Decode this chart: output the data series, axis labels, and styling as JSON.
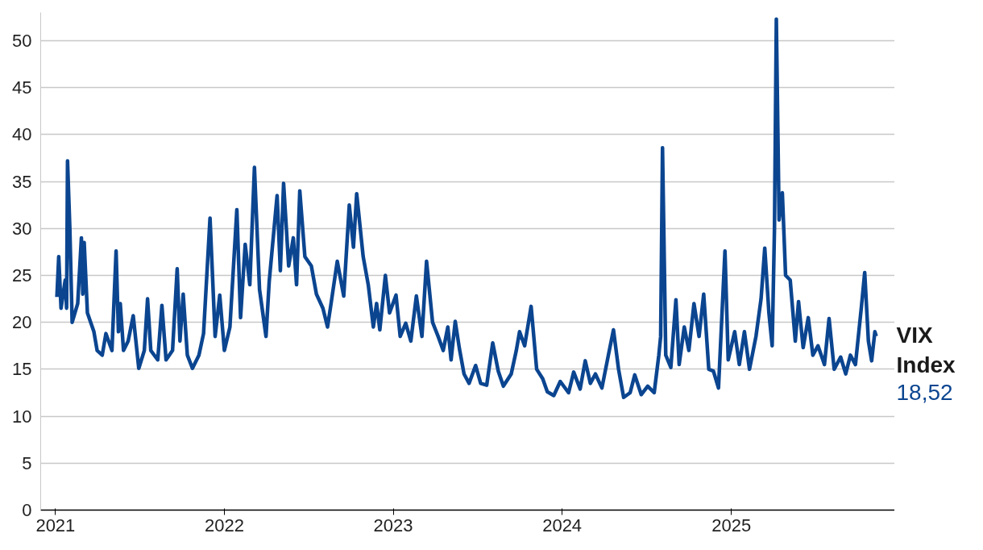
{
  "chart_data": {
    "type": "line",
    "xlim": [
      "2020-11-30",
      "2025-12-20"
    ],
    "ylim": [
      0,
      53
    ],
    "xticks": [
      {
        "value": "2021-01-01",
        "label": "2021"
      },
      {
        "value": "2022-01-01",
        "label": "2022"
      },
      {
        "value": "2023-01-01",
        "label": "2023"
      },
      {
        "value": "2024-01-01",
        "label": "2024"
      },
      {
        "value": "2025-01-01",
        "label": "2025"
      }
    ],
    "yticks": [
      0,
      5,
      10,
      15,
      20,
      25,
      30,
      35,
      40,
      45,
      50
    ],
    "grid": "y",
    "marker": "none",
    "line_style": "solid",
    "x": [
      "2021-01-04",
      "2021-01-08",
      "2021-01-13",
      "2021-01-22",
      "2021-01-25",
      "2021-01-27",
      "2021-02-01",
      "2021-02-06",
      "2021-02-18",
      "2021-02-26",
      "2021-03-01",
      "2021-03-04",
      "2021-03-11",
      "2021-03-25",
      "2021-04-01",
      "2021-04-12",
      "2021-04-20",
      "2021-05-03",
      "2021-05-12",
      "2021-05-17",
      "2021-05-21",
      "2021-05-28",
      "2021-06-07",
      "2021-06-18",
      "2021-06-30",
      "2021-07-12",
      "2021-07-19",
      "2021-07-26",
      "2021-08-10",
      "2021-08-19",
      "2021-08-28",
      "2021-09-11",
      "2021-09-21",
      "2021-09-27",
      "2021-10-04",
      "2021-10-13",
      "2021-10-24",
      "2021-11-07",
      "2021-11-17",
      "2021-12-01",
      "2021-12-12",
      "2021-12-22",
      "2022-01-01",
      "2022-01-13",
      "2022-01-28",
      "2022-02-05",
      "2022-02-15",
      "2022-02-25",
      "2022-03-07",
      "2022-03-18",
      "2022-04-01",
      "2022-04-08",
      "2022-04-25",
      "2022-05-02",
      "2022-05-09",
      "2022-05-20",
      "2022-05-30",
      "2022-06-06",
      "2022-06-13",
      "2022-06-24",
      "2022-07-08",
      "2022-07-19",
      "2022-08-02",
      "2022-08-12",
      "2022-08-19",
      "2022-09-02",
      "2022-09-16",
      "2022-09-28",
      "2022-10-07",
      "2022-10-14",
      "2022-10-28",
      "2022-11-08",
      "2022-11-19",
      "2022-11-26",
      "2022-12-03",
      "2022-12-15",
      "2022-12-24",
      "2023-01-07",
      "2023-01-16",
      "2023-01-28",
      "2023-02-08",
      "2023-02-20",
      "2023-03-04",
      "2023-03-14",
      "2023-03-27",
      "2023-04-08",
      "2023-04-19",
      "2023-04-29",
      "2023-05-06",
      "2023-05-15",
      "2023-05-24",
      "2023-06-03",
      "2023-06-14",
      "2023-06-28",
      "2023-07-09",
      "2023-07-22",
      "2023-08-04",
      "2023-08-16",
      "2023-08-27",
      "2023-09-13",
      "2023-09-24",
      "2023-10-01",
      "2023-10-12",
      "2023-10-26",
      "2023-11-07",
      "2023-11-20",
      "2023-11-30",
      "2023-12-14",
      "2023-12-28",
      "2024-01-15",
      "2024-01-26",
      "2024-02-09",
      "2024-02-20",
      "2024-03-02",
      "2024-03-13",
      "2024-03-27",
      "2024-04-10",
      "2024-04-21",
      "2024-05-02",
      "2024-05-13",
      "2024-05-27",
      "2024-06-06",
      "2024-06-20",
      "2024-07-04",
      "2024-07-18",
      "2024-07-28",
      "2024-08-01",
      "2024-08-05",
      "2024-08-12",
      "2024-08-23",
      "2024-09-03",
      "2024-09-10",
      "2024-09-21",
      "2024-10-01",
      "2024-10-12",
      "2024-10-23",
      "2024-11-02",
      "2024-11-13",
      "2024-11-23",
      "2024-12-04",
      "2024-12-18",
      "2024-12-25",
      "2025-01-08",
      "2025-01-18",
      "2025-01-29",
      "2025-02-09",
      "2025-02-23",
      "2025-03-06",
      "2025-03-14",
      "2025-03-23",
      "2025-03-30",
      "2025-04-04",
      "2025-04-08",
      "2025-04-14",
      "2025-04-21",
      "2025-04-28",
      "2025-05-08",
      "2025-05-19",
      "2025-05-26",
      "2025-06-05",
      "2025-06-16",
      "2025-06-26",
      "2025-07-07",
      "2025-07-21",
      "2025-07-31",
      "2025-08-11",
      "2025-08-25",
      "2025-09-05",
      "2025-09-15",
      "2025-09-26",
      "2025-10-09",
      "2025-10-16",
      "2025-10-24",
      "2025-10-31",
      "2025-11-07",
      "2025-11-10"
    ],
    "series": [
      {
        "name": "VIX Index",
        "color": "#0b4590",
        "values": [
          22.7,
          27,
          21.5,
          24.5,
          21.5,
          37.2,
          30,
          20,
          22,
          29,
          23,
          28.5,
          21,
          19,
          17,
          16.5,
          18.8,
          17,
          27.6,
          19,
          22,
          17,
          18,
          20.7,
          15.1,
          17,
          22.5,
          17,
          16,
          21.8,
          16,
          17,
          25.7,
          18,
          23,
          16.5,
          15.1,
          16.5,
          18.8,
          31.1,
          18.5,
          22.9,
          17,
          19.5,
          32,
          20.5,
          28.3,
          24,
          36.5,
          23.5,
          18.5,
          24.4,
          33.5,
          25.5,
          34.8,
          26,
          29,
          24,
          34,
          27,
          26,
          23,
          21.5,
          19.5,
          21.8,
          26.5,
          22.8,
          32.5,
          28,
          33.7,
          27,
          24,
          19.5,
          22,
          19.2,
          25,
          21,
          22.9,
          18.5,
          19.9,
          18,
          22.8,
          18.5,
          26.5,
          20,
          18.5,
          17,
          19.5,
          16,
          20.1,
          17.2,
          14.5,
          13.5,
          15.4,
          13.5,
          13.3,
          17.8,
          14.8,
          13.2,
          14.5,
          17,
          19,
          17.5,
          21.7,
          15,
          14,
          12.6,
          12.2,
          13.7,
          12.5,
          14.7,
          12.9,
          15.9,
          13.5,
          14.5,
          13,
          16.5,
          19.2,
          15,
          12,
          12.5,
          14.4,
          12.3,
          13.2,
          12.5,
          16.5,
          18.5,
          38.6,
          16.5,
          15.2,
          22.4,
          15.5,
          19.5,
          17,
          22,
          18.5,
          23,
          15,
          14.8,
          13,
          27.6,
          16,
          19,
          15.5,
          19,
          15,
          18.5,
          22.5,
          27.9,
          21,
          17.5,
          30,
          52.3,
          30.9,
          33.8,
          25,
          24.5,
          18,
          22.2,
          17.3,
          20.5,
          16.5,
          17.5,
          15.5,
          20.4,
          15,
          16.3,
          14.5,
          16.5,
          15.5,
          21.7,
          25.3,
          18,
          15.9,
          19,
          18.52
        ],
        "value_labels": [
          null,
          null,
          null,
          null,
          null,
          null,
          null,
          null,
          null,
          null,
          null,
          null,
          null,
          null,
          null,
          null,
          null,
          null,
          null,
          null,
          null,
          null,
          null,
          null,
          null,
          null,
          null,
          null,
          null,
          null,
          null,
          null,
          null,
          null,
          null,
          null,
          null,
          null,
          null,
          null,
          null,
          null,
          null,
          null,
          null,
          null,
          null,
          null,
          null,
          null,
          null,
          null,
          null,
          null,
          null,
          null,
          null,
          null,
          null,
          null,
          null,
          null,
          null,
          null,
          null,
          null,
          null,
          null,
          null,
          null,
          null,
          null,
          null,
          null,
          null,
          null,
          null,
          null,
          null,
          null,
          null,
          null,
          null,
          null,
          null,
          null,
          null,
          null,
          null,
          null,
          null,
          null,
          null,
          null,
          null,
          null,
          null,
          null,
          null,
          null,
          null,
          null,
          null,
          null,
          null,
          null,
          null,
          null,
          null,
          null,
          null,
          null,
          null,
          null,
          null,
          null,
          null,
          null,
          null,
          null,
          null,
          null,
          null,
          null,
          null,
          null,
          null,
          null,
          null,
          null,
          null,
          null,
          null,
          null,
          null,
          null,
          null,
          null,
          null,
          null,
          null,
          null,
          null,
          null,
          null,
          null,
          null,
          null,
          null,
          null,
          null,
          null,
          null,
          null,
          null,
          null,
          null,
          null,
          null,
          null,
          null,
          null,
          null,
          null,
          null,
          null,
          null,
          null,
          null,
          null,
          null,
          null,
          null,
          null,
          null,
          "18,52"
        ]
      }
    ]
  }
}
